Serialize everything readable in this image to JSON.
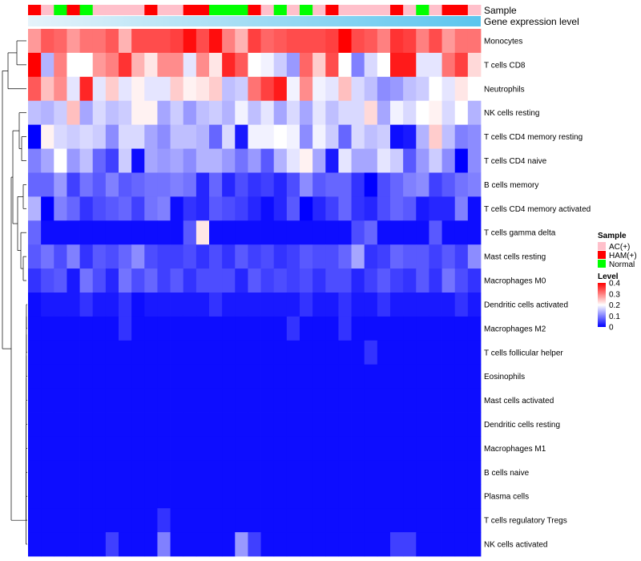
{
  "chart_data": {
    "type": "heatmap",
    "rows": [
      "Monocytes",
      "T cells CD8",
      "Neutrophils",
      "NK cells resting",
      "T cells CD4 memory resting",
      "T cells CD4 naive",
      "B cells memory",
      "T cells CD4 memory activated",
      "T cells gamma delta",
      "Mast cells resting",
      "Macrophages M0",
      "Dendritic cells activated",
      "Macrophages M2",
      "T cells follicular helper",
      "Eosinophils",
      "Mast cells activated",
      "Dendritic cells resting",
      "Macrophages M1",
      "B cells naive",
      "Plasma cells",
      "T cells regulatory  Tregs",
      "NK cells activated"
    ],
    "annotation_labels": {
      "sample": "Sample",
      "gene": "Gene expression level"
    },
    "sample_groups": [
      "HAM(+)",
      "AC(+)",
      "Normal",
      "HAM(+)",
      "Normal",
      "AC(+)",
      "AC(+)",
      "AC(+)",
      "AC(+)",
      "HAM(+)",
      "AC(+)",
      "AC(+)",
      "HAM(+)",
      "HAM(+)",
      "Normal",
      "Normal",
      "Normal",
      "HAM(+)",
      "AC(+)",
      "Normal",
      "AC(+)",
      "Normal",
      "AC(+)",
      "HAM(+)",
      "AC(+)",
      "AC(+)",
      "AC(+)",
      "AC(+)",
      "HAM(+)",
      "AC(+)",
      "Normal",
      "AC(+)",
      "HAM(+)",
      "HAM(+)",
      "AC(+)"
    ],
    "values": [
      [
        0.28,
        0.33,
        0.32,
        0.28,
        0.31,
        0.31,
        0.33,
        0.26,
        0.34,
        0.34,
        0.34,
        0.35,
        0.39,
        0.34,
        0.39,
        0.3,
        0.26,
        0.35,
        0.32,
        0.33,
        0.34,
        0.34,
        0.34,
        0.35,
        0.4,
        0.34,
        0.33,
        0.3,
        0.36,
        0.35,
        0.3,
        0.34,
        0.28,
        0.31,
        0.31
      ],
      [
        0.4,
        0.14,
        0.3,
        0.2,
        0.2,
        0.28,
        0.3,
        0.36,
        0.26,
        0.22,
        0.29,
        0.29,
        0.18,
        0.29,
        0.22,
        0.37,
        0.33,
        0.2,
        0.19,
        0.16,
        0.12,
        0.32,
        0.24,
        0.34,
        0.2,
        0.1,
        0.17,
        0.2,
        0.38,
        0.38,
        0.18,
        0.18,
        0.31,
        0.35,
        0.23
      ],
      [
        0.33,
        0.25,
        0.29,
        0.18,
        0.37,
        0.18,
        0.24,
        0.18,
        0.21,
        0.18,
        0.18,
        0.24,
        0.21,
        0.22,
        0.24,
        0.15,
        0.16,
        0.31,
        0.35,
        0.38,
        0.19,
        0.29,
        0.19,
        0.18,
        0.25,
        0.17,
        0.15,
        0.11,
        0.12,
        0.15,
        0.16,
        0.2,
        0.18,
        0.22,
        0.2
      ],
      [
        0.15,
        0.14,
        0.16,
        0.25,
        0.13,
        0.17,
        0.15,
        0.16,
        0.21,
        0.21,
        0.13,
        0.16,
        0.12,
        0.15,
        0.16,
        0.14,
        0.19,
        0.15,
        0.18,
        0.13,
        0.17,
        0.13,
        0.18,
        0.15,
        0.17,
        0.17,
        0.23,
        0.13,
        0.19,
        0.17,
        0.2,
        0.21,
        0.17,
        0.2,
        0.14
      ],
      [
        0.0,
        0.21,
        0.17,
        0.16,
        0.17,
        0.16,
        0.11,
        0.17,
        0.17,
        0.13,
        0.11,
        0.15,
        0.15,
        0.14,
        0.08,
        0.17,
        0.02,
        0.19,
        0.19,
        0.2,
        0.19,
        0.11,
        0.19,
        0.16,
        0.08,
        0.17,
        0.15,
        0.16,
        0.01,
        0.02,
        0.14,
        0.24,
        0.15,
        0.1,
        0.11
      ],
      [
        0.1,
        0.13,
        0.2,
        0.12,
        0.15,
        0.08,
        0.05,
        0.16,
        0.01,
        0.13,
        0.12,
        0.13,
        0.11,
        0.14,
        0.14,
        0.12,
        0.09,
        0.12,
        0.07,
        0.14,
        0.18,
        0.21,
        0.13,
        0.02,
        0.18,
        0.13,
        0.13,
        0.18,
        0.16,
        0.07,
        0.12,
        0.16,
        0.11,
        0.0,
        0.11
      ],
      [
        0.08,
        0.08,
        0.12,
        0.05,
        0.09,
        0.07,
        0.1,
        0.07,
        0.08,
        0.09,
        0.09,
        0.1,
        0.09,
        0.03,
        0.08,
        0.03,
        0.06,
        0.04,
        0.05,
        0.03,
        0.06,
        0.11,
        0.07,
        0.08,
        0.08,
        0.04,
        0.0,
        0.06,
        0.08,
        0.1,
        0.11,
        0.05,
        0.07,
        0.09,
        0.1
      ],
      [
        0.14,
        0.0,
        0.1,
        0.08,
        0.04,
        0.06,
        0.07,
        0.08,
        0.05,
        0.09,
        0.1,
        0.01,
        0.04,
        0.03,
        0.07,
        0.06,
        0.05,
        0.03,
        0.01,
        0.03,
        0.07,
        0.0,
        0.03,
        0.05,
        0.08,
        0.04,
        0.03,
        0.06,
        0.08,
        0.07,
        0.02,
        0.03,
        0.03,
        0.1,
        0.01
      ],
      [
        0.08,
        0.01,
        0.01,
        0.01,
        0.01,
        0.01,
        0.01,
        0.01,
        0.01,
        0.01,
        0.01,
        0.01,
        0.07,
        0.22,
        0.01,
        0.01,
        0.01,
        0.01,
        0.01,
        0.01,
        0.01,
        0.01,
        0.01,
        0.01,
        0.01,
        0.06,
        0.08,
        0.01,
        0.01,
        0.01,
        0.01,
        0.07,
        0.01,
        0.01,
        0.01
      ],
      [
        0.07,
        0.09,
        0.06,
        0.1,
        0.04,
        0.07,
        0.06,
        0.08,
        0.11,
        0.06,
        0.05,
        0.05,
        0.06,
        0.04,
        0.06,
        0.04,
        0.07,
        0.05,
        0.06,
        0.04,
        0.05,
        0.07,
        0.06,
        0.06,
        0.08,
        0.13,
        0.04,
        0.05,
        0.08,
        0.07,
        0.07,
        0.05,
        0.07,
        0.05,
        0.11
      ],
      [
        0.04,
        0.06,
        0.07,
        0.02,
        0.09,
        0.06,
        0.03,
        0.09,
        0.06,
        0.08,
        0.05,
        0.07,
        0.04,
        0.06,
        0.06,
        0.06,
        0.03,
        0.07,
        0.05,
        0.06,
        0.05,
        0.06,
        0.04,
        0.06,
        0.06,
        0.03,
        0.05,
        0.07,
        0.05,
        0.04,
        0.07,
        0.04,
        0.09,
        0.06,
        0.04
      ],
      [
        0.01,
        0.02,
        0.02,
        0.02,
        0.04,
        0.02,
        0.02,
        0.04,
        0.01,
        0.02,
        0.02,
        0.02,
        0.02,
        0.02,
        0.04,
        0.02,
        0.02,
        0.02,
        0.02,
        0.02,
        0.02,
        0.04,
        0.02,
        0.02,
        0.04,
        0.02,
        0.02,
        0.04,
        0.02,
        0.02,
        0.02,
        0.02,
        0.02,
        0.04,
        0.02
      ],
      [
        0.01,
        0.01,
        0.01,
        0.01,
        0.01,
        0.01,
        0.01,
        0.04,
        0.01,
        0.01,
        0.01,
        0.01,
        0.01,
        0.01,
        0.01,
        0.01,
        0.01,
        0.01,
        0.01,
        0.01,
        0.04,
        0.01,
        0.01,
        0.01,
        0.04,
        0.01,
        0.01,
        0.01,
        0.01,
        0.01,
        0.01,
        0.01,
        0.01,
        0.01,
        0.01
      ],
      [
        0.01,
        0.01,
        0.01,
        0.01,
        0.01,
        0.01,
        0.01,
        0.01,
        0.01,
        0.01,
        0.01,
        0.01,
        0.01,
        0.01,
        0.01,
        0.01,
        0.01,
        0.01,
        0.01,
        0.01,
        0.01,
        0.01,
        0.01,
        0.01,
        0.01,
        0.01,
        0.04,
        0.01,
        0.01,
        0.01,
        0.01,
        0.01,
        0.01,
        0.01,
        0.01
      ],
      [
        0.01,
        0.01,
        0.01,
        0.01,
        0.01,
        0.01,
        0.01,
        0.01,
        0.01,
        0.01,
        0.01,
        0.01,
        0.01,
        0.01,
        0.01,
        0.01,
        0.01,
        0.01,
        0.01,
        0.01,
        0.01,
        0.01,
        0.01,
        0.01,
        0.01,
        0.01,
        0.01,
        0.01,
        0.01,
        0.01,
        0.01,
        0.01,
        0.01,
        0.01,
        0.01
      ],
      [
        0.01,
        0.01,
        0.01,
        0.01,
        0.01,
        0.01,
        0.01,
        0.01,
        0.01,
        0.01,
        0.01,
        0.01,
        0.01,
        0.01,
        0.01,
        0.01,
        0.01,
        0.01,
        0.01,
        0.01,
        0.01,
        0.01,
        0.01,
        0.01,
        0.01,
        0.01,
        0.01,
        0.01,
        0.01,
        0.01,
        0.01,
        0.01,
        0.01,
        0.01,
        0.01
      ],
      [
        0.01,
        0.01,
        0.01,
        0.01,
        0.01,
        0.01,
        0.01,
        0.01,
        0.01,
        0.01,
        0.01,
        0.01,
        0.01,
        0.01,
        0.01,
        0.01,
        0.01,
        0.01,
        0.01,
        0.01,
        0.01,
        0.01,
        0.01,
        0.01,
        0.01,
        0.01,
        0.01,
        0.01,
        0.01,
        0.01,
        0.01,
        0.01,
        0.01,
        0.01,
        0.01
      ],
      [
        0.01,
        0.01,
        0.01,
        0.01,
        0.01,
        0.01,
        0.01,
        0.01,
        0.01,
        0.01,
        0.01,
        0.01,
        0.01,
        0.01,
        0.01,
        0.01,
        0.01,
        0.01,
        0.01,
        0.01,
        0.01,
        0.01,
        0.01,
        0.01,
        0.01,
        0.01,
        0.01,
        0.01,
        0.01,
        0.01,
        0.01,
        0.01,
        0.01,
        0.01,
        0.01
      ],
      [
        0.01,
        0.01,
        0.01,
        0.01,
        0.01,
        0.01,
        0.01,
        0.01,
        0.01,
        0.01,
        0.01,
        0.01,
        0.01,
        0.01,
        0.01,
        0.01,
        0.01,
        0.01,
        0.01,
        0.01,
        0.01,
        0.01,
        0.01,
        0.01,
        0.01,
        0.01,
        0.01,
        0.01,
        0.01,
        0.01,
        0.01,
        0.01,
        0.01,
        0.01,
        0.01
      ],
      [
        0.01,
        0.01,
        0.01,
        0.01,
        0.01,
        0.01,
        0.01,
        0.01,
        0.01,
        0.01,
        0.01,
        0.01,
        0.01,
        0.01,
        0.01,
        0.01,
        0.01,
        0.01,
        0.01,
        0.01,
        0.01,
        0.01,
        0.01,
        0.01,
        0.01,
        0.01,
        0.01,
        0.01,
        0.01,
        0.01,
        0.01,
        0.01,
        0.01,
        0.01,
        0.01
      ],
      [
        0.01,
        0.01,
        0.01,
        0.01,
        0.01,
        0.01,
        0.01,
        0.01,
        0.01,
        0.01,
        0.04,
        0.01,
        0.01,
        0.01,
        0.01,
        0.01,
        0.01,
        0.01,
        0.01,
        0.01,
        0.01,
        0.01,
        0.01,
        0.01,
        0.01,
        0.01,
        0.01,
        0.01,
        0.01,
        0.01,
        0.01,
        0.01,
        0.01,
        0.01,
        0.01
      ],
      [
        0.01,
        0.01,
        0.01,
        0.01,
        0.01,
        0.01,
        0.05,
        0.01,
        0.01,
        0.01,
        0.1,
        0.01,
        0.01,
        0.01,
        0.01,
        0.01,
        0.12,
        0.05,
        0.01,
        0.01,
        0.01,
        0.01,
        0.01,
        0.01,
        0.01,
        0.01,
        0.01,
        0.01,
        0.05,
        0.05,
        0.01,
        0.01,
        0.01,
        0.01,
        0.01
      ]
    ],
    "color_scale": {
      "min": 0,
      "max": 0.4,
      "low": "#0000ff",
      "mid": "#ffffff",
      "high": "#ff0000"
    },
    "legend": {
      "sample_title": "Sample",
      "sample_items": [
        {
          "label": "AC(+)",
          "color": "#ffc0cb"
        },
        {
          "label": "HAM(+)",
          "color": "#ff0000"
        },
        {
          "label": "Normal",
          "color": "#00ff00"
        }
      ],
      "level_title": "Level",
      "level_ticks": [
        "0.4",
        "0.3",
        "0.2",
        "0.1",
        "0"
      ],
      "level_tick_values": [
        0.4,
        0.3,
        0.2,
        0.1,
        0
      ]
    },
    "gene_bar_colors": {
      "start": "#e6f3fa",
      "end": "#5bc5ee"
    }
  }
}
